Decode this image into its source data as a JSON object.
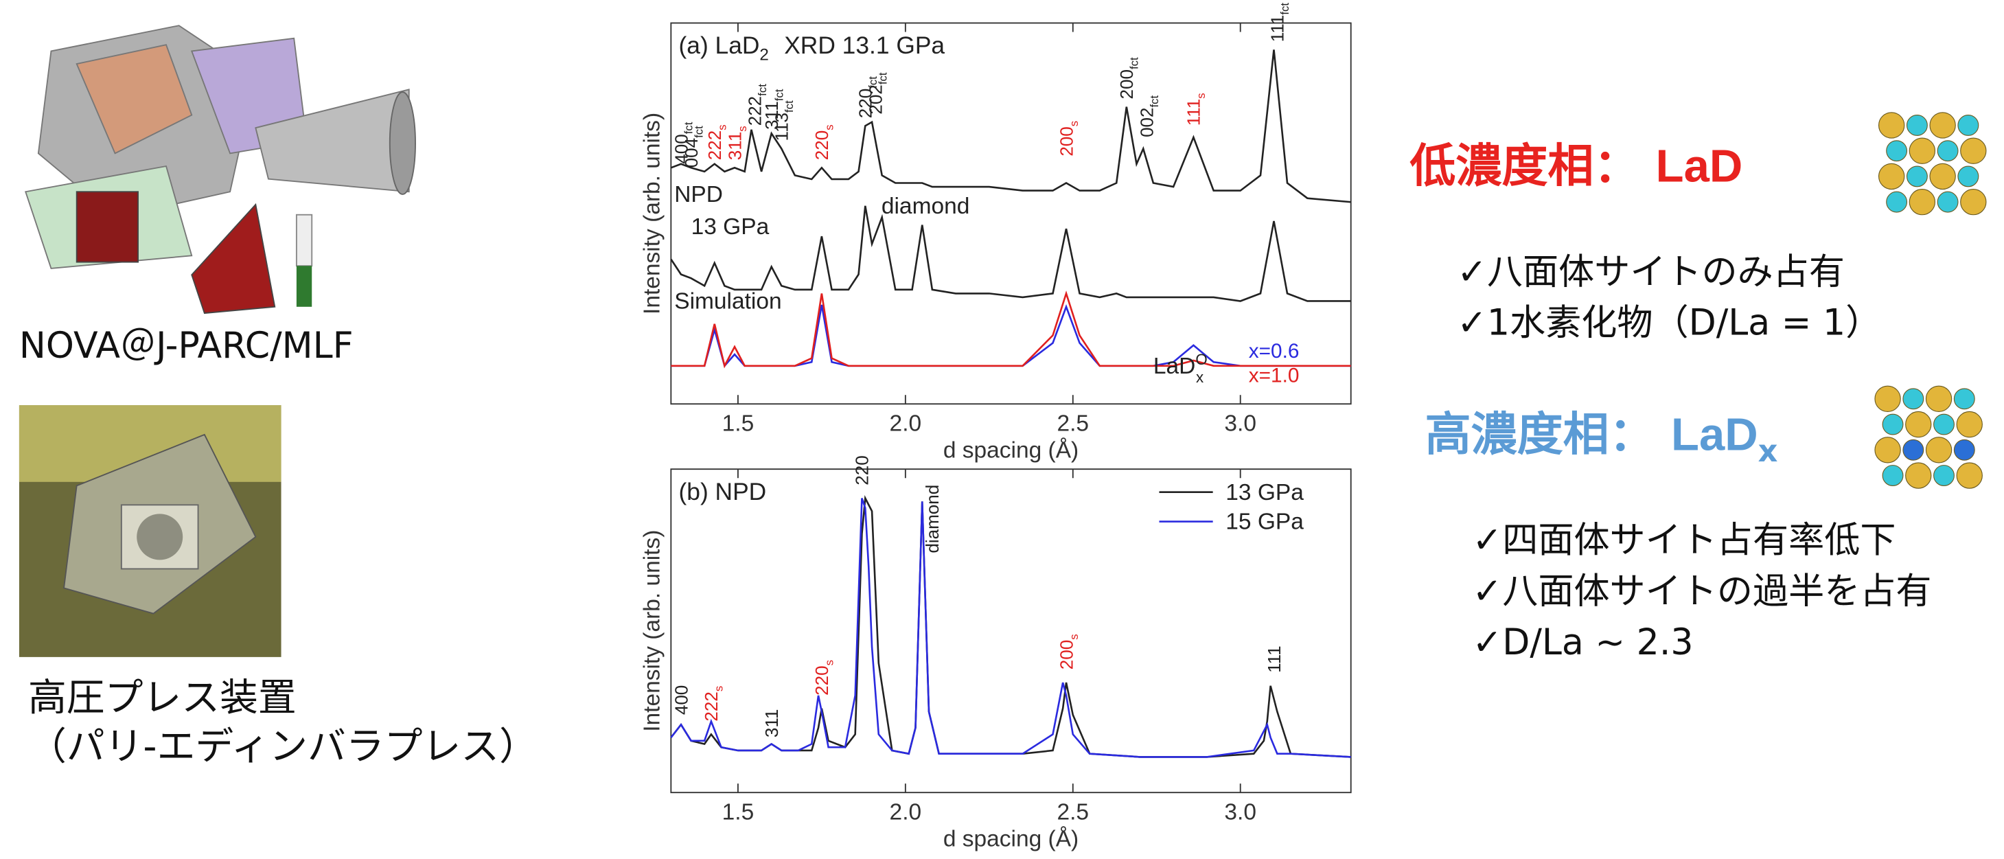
{
  "left": {
    "instrument_label": "NOVA＠J-PARC/MLF",
    "press_label": "高圧プレス装置",
    "press_sublabel": "（パリ-エディンバラプレス）"
  },
  "right": {
    "phases": [
      {
        "title": "低濃度相： ",
        "formula": "LaD",
        "color": "#e8231f",
        "bullets": [
          "✓八面体サイトのみ占有",
          "✓1水素化物（D/La = 1）"
        ]
      },
      {
        "title": "高濃度相： ",
        "formula": "LaD",
        "formula_sub": "x",
        "color": "#5b9bd5",
        "bullets": [
          "✓四面体サイト占有率低下",
          "✓八面体サイトの過半を占有",
          "✓D/La ~ 2.3"
        ]
      }
    ]
  },
  "chart_data": [
    {
      "type": "line",
      "title": "(a) LaD",
      "title_sub": "2",
      "title_suffix": "XRD  13.1 GPa",
      "x_label": "d spacing (Å)",
      "y_label": "Intensity (arb. units)",
      "xlim": [
        1.3,
        3.33
      ],
      "ylim": [
        0,
        100
      ],
      "xticks": [
        1.5,
        {
          "value": 2,
          "label": "2.0"
        },
        2.5,
        {
          "value": 3,
          "label": "3.0"
        }
      ],
      "legend": "lower right",
      "legend_lines": false,
      "x": [
        1.3,
        1.33,
        1.36,
        1.4,
        1.43,
        1.46,
        1.49,
        1.52,
        1.54,
        1.57,
        1.6,
        1.63,
        1.67,
        1.72,
        1.75,
        1.78,
        1.83,
        1.86,
        1.88,
        1.9,
        1.93,
        1.97,
        2.02,
        2.05,
        2.08,
        2.15,
        2.25,
        2.35,
        2.44,
        2.48,
        2.52,
        2.58,
        2.63,
        2.66,
        2.69,
        2.71,
        2.74,
        2.8,
        2.86,
        2.92,
        3.0,
        3.06,
        3.1,
        3.14,
        3.2,
        3.33
      ],
      "series": [
        {
          "color": "#222222",
          "values": [
            62,
            63,
            62,
            61,
            63,
            61,
            62,
            61,
            72,
            61,
            71,
            67,
            60,
            59,
            62,
            59,
            59,
            61,
            73,
            74,
            60,
            58,
            58,
            58,
            57,
            57,
            57,
            56,
            56,
            58,
            56,
            56,
            58,
            78,
            63,
            67,
            58,
            57,
            70,
            56,
            56,
            60,
            93,
            58,
            54,
            53
          ]
        },
        {
          "color": "#222222",
          "values": [
            38,
            34,
            33,
            31,
            37,
            31,
            30,
            30,
            30,
            30,
            36,
            31,
            30,
            30,
            44,
            30,
            30,
            34,
            52,
            42,
            49,
            30,
            30,
            47,
            30,
            29,
            29,
            28,
            29,
            46,
            29,
            28,
            29,
            28,
            28,
            28,
            28,
            28,
            28,
            28,
            27,
            29,
            48,
            29,
            27,
            27
          ]
        },
        {
          "name": "x=0.6",
          "color": "#2a2adf",
          "values": [
            10,
            10,
            10,
            10,
            19.5,
            10,
            13,
            10,
            10,
            10,
            10,
            10,
            10,
            11,
            26,
            11,
            10,
            10,
            10,
            10,
            10,
            10,
            10,
            10,
            10,
            10,
            10,
            10,
            16,
            25.5,
            16,
            10,
            10,
            10,
            10,
            10,
            10,
            11,
            15.4,
            11,
            10,
            10,
            10,
            10,
            10,
            10
          ]
        },
        {
          "name": "x=1.0",
          "color": "#e0201f",
          "values": [
            10,
            10,
            10,
            10,
            21,
            10,
            15,
            10,
            10,
            10,
            10,
            10,
            10,
            12,
            29,
            12,
            10,
            10,
            10,
            10,
            10,
            10,
            10,
            10,
            10,
            10,
            10,
            10,
            18,
            29,
            18,
            10,
            10,
            10,
            10,
            10,
            10,
            10,
            11.4,
            10,
            10,
            10,
            10,
            10,
            10,
            10
          ]
        }
      ],
      "annotations": [
        {
          "text": "NPD",
          "x": 1.31,
          "y": 53
        },
        {
          "text": "13 GPa",
          "x": 1.36,
          "y": 44.6
        },
        {
          "text": "Simulation",
          "x": 1.31,
          "y": 25
        },
        {
          "text": "diamond",
          "x": 2.06,
          "y": 50,
          "anchor": "middle"
        },
        {
          "text": "LaD",
          "sub": "x",
          "sup": "O",
          "x": 2.74,
          "y": 8
        },
        {
          "text": "400",
          "sub": "fct",
          "x": 1.33,
          "y": 63,
          "rotate": true,
          "color": "#222222"
        },
        {
          "text": "004",
          "sub": "fct",
          "x": 1.36,
          "y": 62,
          "rotate": true,
          "color": "#222222"
        },
        {
          "text": "222",
          "sub": "s",
          "x": 1.43,
          "y": 64,
          "rotate": true,
          "color": "#e0201f"
        },
        {
          "text": "311",
          "sub": "s",
          "x": 1.49,
          "y": 64,
          "rotate": true,
          "color": "#e0201f"
        },
        {
          "text": "222",
          "sub": "fct",
          "x": 1.55,
          "y": 73,
          "rotate": true,
          "color": "#222222"
        },
        {
          "text": "311",
          "sub": "fct",
          "x": 1.6,
          "y": 72,
          "rotate": true,
          "color": "#222222"
        },
        {
          "text": "113",
          "sub": "fct",
          "x": 1.63,
          "y": 69,
          "rotate": true,
          "color": "#222222"
        },
        {
          "text": "220",
          "sub": "s",
          "x": 1.75,
          "y": 64,
          "rotate": true,
          "color": "#e0201f"
        },
        {
          "text": "220",
          "sub": "fct",
          "x": 1.88,
          "y": 75,
          "rotate": true,
          "color": "#222222"
        },
        {
          "text": "202",
          "sub": "fct",
          "x": 1.91,
          "y": 76,
          "rotate": true,
          "color": "#222222"
        },
        {
          "text": "200",
          "sub": "s",
          "x": 2.48,
          "y": 65,
          "rotate": true,
          "color": "#e0201f"
        },
        {
          "text": "200",
          "sub": "fct",
          "x": 2.66,
          "y": 80,
          "rotate": true,
          "color": "#222222"
        },
        {
          "text": "002",
          "sub": "fct",
          "x": 2.72,
          "y": 70,
          "rotate": true,
          "color": "#222222"
        },
        {
          "text": "111",
          "sub": "s",
          "x": 2.86,
          "y": 73,
          "rotate": true,
          "color": "#e0201f"
        },
        {
          "text": "111",
          "sub": "fct",
          "x": 3.11,
          "y": 95,
          "rotate": true,
          "color": "#222222"
        }
      ]
    },
    {
      "type": "line",
      "title": "(b) NPD",
      "x_label": "d spacing (Å)",
      "y_label": "Intensity (arb. units)",
      "xlim": [
        1.3,
        3.33
      ],
      "ylim": [
        0,
        100
      ],
      "xticks": [
        1.5,
        {
          "value": 2,
          "label": "2.0"
        },
        2.5,
        {
          "value": 3,
          "label": "3.0"
        }
      ],
      "legend": "upper right",
      "legend_lines": true,
      "x": [
        1.3,
        1.33,
        1.36,
        1.4,
        1.42,
        1.45,
        1.5,
        1.57,
        1.6,
        1.63,
        1.68,
        1.72,
        1.74,
        1.75,
        1.77,
        1.82,
        1.85,
        1.87,
        1.88,
        1.89,
        1.9,
        1.92,
        1.96,
        2.01,
        2.03,
        2.05,
        2.07,
        2.1,
        2.2,
        2.35,
        2.44,
        2.47,
        2.48,
        2.5,
        2.55,
        2.7,
        2.9,
        3.04,
        3.07,
        3.08,
        3.09,
        3.11,
        3.15,
        3.33
      ],
      "series": [
        {
          "name": "13 GPa",
          "color": "#222222",
          "values": [
            17,
            21,
            16,
            15,
            18,
            14,
            13,
            13,
            15,
            13,
            13,
            13,
            20,
            26,
            16,
            14,
            18,
            80,
            91,
            89,
            87,
            40,
            13,
            12,
            20,
            90,
            25,
            12,
            12,
            12,
            13,
            26,
            34,
            24,
            12,
            11,
            11,
            12,
            16,
            22,
            33,
            25,
            12,
            11
          ]
        },
        {
          "name": "15 GPa",
          "color": "#2a2adf",
          "values": [
            17,
            21,
            16,
            16,
            22,
            14,
            13,
            13,
            15,
            13,
            13,
            15,
            30,
            25,
            14,
            14,
            30,
            91,
            88,
            70,
            45,
            18,
            13,
            12,
            20,
            90,
            25,
            12,
            12,
            12,
            18,
            34,
            30,
            18,
            12,
            11,
            11,
            13,
            19,
            21,
            17,
            12,
            12,
            11
          ]
        }
      ],
      "annotations": [
        {
          "text": "400",
          "x": 1.33,
          "y": 24,
          "rotate": true,
          "color": "#222222"
        },
        {
          "text": "222",
          "sub": "s",
          "x": 1.42,
          "y": 22,
          "rotate": true,
          "color": "#e0201f"
        },
        {
          "text": "311",
          "x": 1.6,
          "y": 17,
          "rotate": true,
          "color": "#222222"
        },
        {
          "text": "220",
          "sub": "s",
          "x": 1.75,
          "y": 30,
          "rotate": true,
          "color": "#e0201f"
        },
        {
          "text": "220",
          "x": 1.87,
          "y": 95,
          "rotate": true,
          "color": "#222222"
        },
        {
          "text": "diamond",
          "x": 2.08,
          "y": 74,
          "rotate": true,
          "color": "#222222"
        },
        {
          "text": "200",
          "sub": "s",
          "x": 2.48,
          "y": 38,
          "rotate": true,
          "color": "#e0201f"
        },
        {
          "text": "111",
          "x": 3.1,
          "y": 37,
          "rotate": true,
          "color": "#222222"
        }
      ]
    }
  ]
}
